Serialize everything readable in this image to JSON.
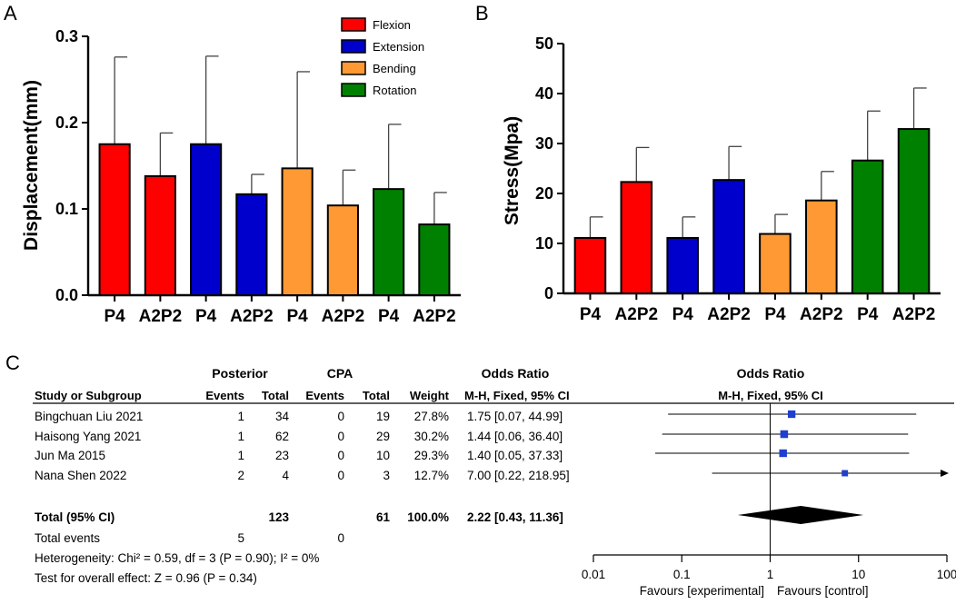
{
  "panel_labels": [
    "A",
    "B",
    "C"
  ],
  "chart_data": [
    {
      "panel": "A",
      "type": "bar",
      "ylabel": "Displacement(mm)",
      "xlabel": "",
      "ylim": [
        0,
        0.3
      ],
      "yticks": [
        0.0,
        0.1,
        0.2,
        0.3
      ],
      "ytick_labels": [
        "0.0",
        "0.1",
        "0.2",
        "0.3"
      ],
      "categories": [
        "P4",
        "A2P2",
        "P4",
        "A2P2",
        "P4",
        "A2P2",
        "P4",
        "A2P2"
      ],
      "values": [
        0.175,
        0.138,
        0.175,
        0.117,
        0.147,
        0.104,
        0.123,
        0.082
      ],
      "error_upper": [
        0.276,
        0.188,
        0.277,
        0.14,
        0.259,
        0.145,
        0.198,
        0.119
      ],
      "bar_groups": [
        "Flexion",
        "Flexion",
        "Extension",
        "Extension",
        "Bending",
        "Bending",
        "Rotation",
        "Rotation"
      ],
      "legend": [
        {
          "label": "Flexion",
          "color": "#ff0000"
        },
        {
          "label": "Extension",
          "color": "#0000cc"
        },
        {
          "label": "Bending",
          "color": "#ff9933"
        },
        {
          "label": "Rotation",
          "color": "#008000"
        }
      ],
      "legend_position": "top-right"
    },
    {
      "panel": "B",
      "type": "bar",
      "ylabel": "Stress(Mpa)",
      "xlabel": "",
      "ylim": [
        0,
        50
      ],
      "yticks": [
        0,
        10,
        20,
        30,
        40,
        50
      ],
      "ytick_labels": [
        "0",
        "10",
        "20",
        "30",
        "40",
        "50"
      ],
      "categories": [
        "P4",
        "A2P2",
        "P4",
        "A2P2",
        "P4",
        "A2P2",
        "P4",
        "A2P2"
      ],
      "values": [
        11.1,
        22.3,
        11.1,
        22.7,
        11.9,
        18.6,
        26.6,
        32.9
      ],
      "error_upper": [
        15.3,
        29.2,
        15.3,
        29.4,
        15.8,
        24.4,
        36.5,
        41.1
      ],
      "bar_groups": [
        "Flexion",
        "Flexion",
        "Extension",
        "Extension",
        "Bending",
        "Bending",
        "Rotation",
        "Rotation"
      ]
    },
    {
      "panel": "C",
      "type": "forest",
      "group_headers": {
        "experimental": "Posterior",
        "control": "CPA",
        "effect": "Odds Ratio",
        "plot": "Odds Ratio"
      },
      "column_headers": {
        "study": "Study or Subgroup",
        "exp_events": "Events",
        "exp_total": "Total",
        "ctl_events": "Events",
        "ctl_total": "Total",
        "weight": "Weight",
        "method": "M-H, Fixed, 95% CI",
        "plot_method": "M-H, Fixed, 95% CI"
      },
      "studies": [
        {
          "name": "Bingchuan Liu 2021",
          "exp_events": "1",
          "exp_total": "34",
          "ctl_events": "0",
          "ctl_total": "19",
          "weight": "27.8%",
          "ci_text": "1.75 [0.07, 44.99]",
          "or": 1.75,
          "lo": 0.07,
          "hi": 44.99
        },
        {
          "name": "Haisong Yang 2021",
          "exp_events": "1",
          "exp_total": "62",
          "ctl_events": "0",
          "ctl_total": "29",
          "weight": "30.2%",
          "ci_text": "1.44 [0.06, 36.40]",
          "or": 1.44,
          "lo": 0.06,
          "hi": 36.4
        },
        {
          "name": "Jun Ma 2015",
          "exp_events": "1",
          "exp_total": "23",
          "ctl_events": "0",
          "ctl_total": "10",
          "weight": "29.3%",
          "ci_text": "1.40 [0.05, 37.33]",
          "or": 1.4,
          "lo": 0.05,
          "hi": 37.33
        },
        {
          "name": "Nana Shen 2022",
          "exp_events": "2",
          "exp_total": "4",
          "ctl_events": "0",
          "ctl_total": "3",
          "weight": "12.7%",
          "ci_text": "7.00 [0.22, 218.95]",
          "or": 7.0,
          "lo": 0.22,
          "hi": 218.95
        }
      ],
      "total": {
        "name": "Total (95% CI)",
        "exp_total": "123",
        "ctl_total": "61",
        "weight": "100.0%",
        "ci_text": "2.22 [0.43, 11.36]",
        "or": 2.22,
        "lo": 0.43,
        "hi": 11.36
      },
      "total_events": {
        "label": "Total events",
        "exp": "5",
        "ctl": "0"
      },
      "heterogeneity": "Heterogeneity: Chi² = 0.59, df = 3 (P = 0.90); I² = 0%",
      "overall_effect": "Test for overall effect: Z = 0.96 (P = 0.34)",
      "xscale": "log",
      "xlim": [
        0.01,
        100
      ],
      "xticks": [
        0.01,
        0.1,
        1,
        10,
        100
      ],
      "xtick_labels": [
        "0.01",
        "0.1",
        "1",
        "10",
        "100"
      ],
      "favours_left": "Favours [experimental]",
      "favours_right": "Favours [control]"
    }
  ]
}
